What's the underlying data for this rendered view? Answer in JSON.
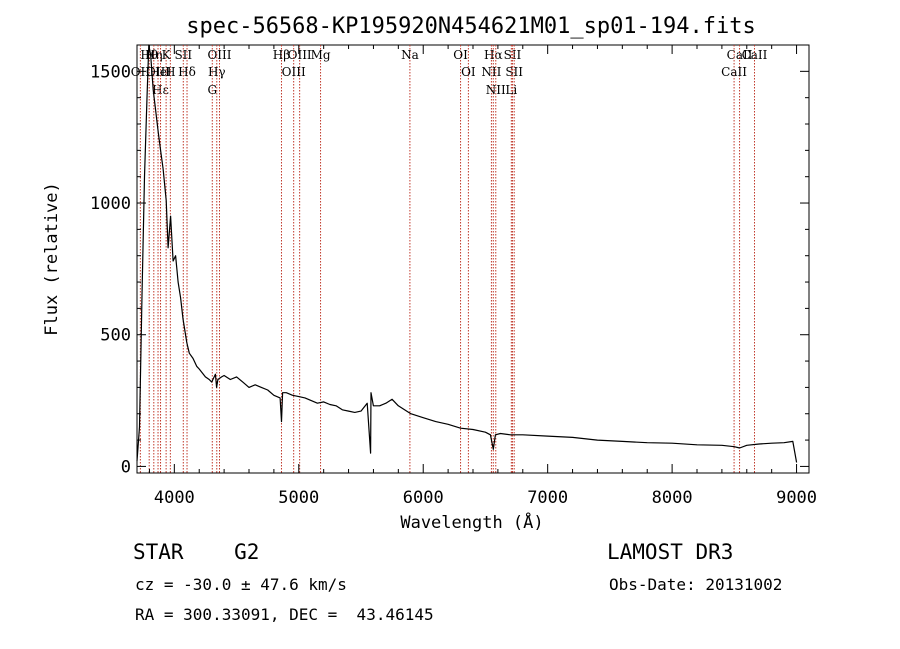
{
  "chart_data": {
    "type": "line",
    "title": "spec-56568-KP195920N454621M01_sp01-194.fits",
    "xlabel": "Wavelength (Å)",
    "ylabel": "Flux (relative)",
    "xlim": [
      3700,
      9100
    ],
    "ylim": [
      -25,
      1600
    ],
    "xticks": [
      4000,
      5000,
      6000,
      7000,
      8000,
      9000
    ],
    "xtick_labels": [
      "4000",
      "5000",
      "6000",
      "7000",
      "8000",
      "9000"
    ],
    "yticks": [
      0,
      500,
      1000,
      1500
    ],
    "ytick_labels": [
      "0",
      "500",
      "1000",
      "1500"
    ],
    "grid": false,
    "series": [
      {
        "name": "spectrum",
        "x": [
          3700,
          3720,
          3740,
          3760,
          3780,
          3795,
          3810,
          3830,
          3850,
          3870,
          3890,
          3910,
          3935,
          3950,
          3970,
          3990,
          4010,
          4030,
          4050,
          4070,
          4100,
          4120,
          4150,
          4180,
          4200,
          4250,
          4280,
          4300,
          4330,
          4340,
          4350,
          4380,
          4400,
          4450,
          4500,
          4550,
          4600,
          4650,
          4700,
          4750,
          4800,
          4850,
          4861,
          4870,
          4900,
          4950,
          5000,
          5050,
          5100,
          5150,
          5200,
          5250,
          5300,
          5350,
          5400,
          5450,
          5500,
          5550,
          5577,
          5580,
          5600,
          5650,
          5700,
          5750,
          5800,
          5900,
          6000,
          6100,
          6200,
          6300,
          6400,
          6500,
          6540,
          6563,
          6580,
          6620,
          6700,
          6800,
          7000,
          7200,
          7400,
          7600,
          7800,
          8000,
          8200,
          8400,
          8500,
          8542,
          8600,
          8700,
          8800,
          8900,
          8970,
          9000
        ],
        "y": [
          20,
          150,
          650,
          1100,
          1400,
          1620,
          1560,
          1430,
          1350,
          1270,
          1200,
          1130,
          1010,
          830,
          950,
          780,
          800,
          700,
          640,
          560,
          470,
          430,
          410,
          380,
          370,
          340,
          330,
          320,
          350,
          300,
          330,
          340,
          345,
          330,
          340,
          320,
          300,
          310,
          300,
          290,
          270,
          260,
          170,
          280,
          280,
          270,
          265,
          260,
          250,
          240,
          245,
          235,
          230,
          215,
          210,
          205,
          210,
          240,
          50,
          280,
          230,
          230,
          240,
          255,
          230,
          200,
          185,
          170,
          160,
          145,
          140,
          130,
          120,
          65,
          120,
          125,
          120,
          120,
          115,
          110,
          100,
          95,
          90,
          88,
          82,
          80,
          75,
          70,
          80,
          85,
          88,
          90,
          95,
          15
        ]
      }
    ],
    "line_markers": [
      {
        "label": "Hθ",
        "x": 3798
      },
      {
        "label": "OII",
        "x": 3727
      },
      {
        "label": "OIII",
        "x": 3869
      },
      {
        "label": "Hε",
        "x": 3889
      },
      {
        "label": "HeI",
        "x": 3889
      },
      {
        "label": "K",
        "x": 3934
      },
      {
        "label": "Hη",
        "x": 3835
      },
      {
        "label": "H",
        "x": 3968
      },
      {
        "label": "SII",
        "x": 4072
      },
      {
        "label": "Hδ",
        "x": 4102
      },
      {
        "label": "OIII",
        "x": 4363
      },
      {
        "label": "Hγ",
        "x": 4341
      },
      {
        "label": "G",
        "x": 4305
      },
      {
        "label": "Hβ",
        "x": 4861
      },
      {
        "label": "OIII",
        "x": 5007
      },
      {
        "label": "OIII",
        "x": 4959
      },
      {
        "label": "Mg",
        "x": 5175
      },
      {
        "label": "Na",
        "x": 5893
      },
      {
        "label": "OI",
        "x": 6300
      },
      {
        "label": "OI",
        "x": 6363
      },
      {
        "label": "Hα",
        "x": 6563
      },
      {
        "label": "NII",
        "x": 6548
      },
      {
        "label": "NII",
        "x": 6583
      },
      {
        "label": "SII",
        "x": 6717
      },
      {
        "label": "SII",
        "x": 6731
      },
      {
        "label": "Li",
        "x": 6708
      },
      {
        "label": "CaII",
        "x": 8542
      },
      {
        "label": "CaII",
        "x": 8498
      },
      {
        "label": "CaII",
        "x": 8662
      }
    ]
  },
  "info": {
    "class_line": "STAR    G2",
    "cz_line": "cz = -30.0 ± 47.6 km/s",
    "radec_line": "RA = 300.33091, DEC =  43.46145",
    "survey": "LAMOST DR3",
    "obs_date": "Obs-Date: 20131002"
  }
}
